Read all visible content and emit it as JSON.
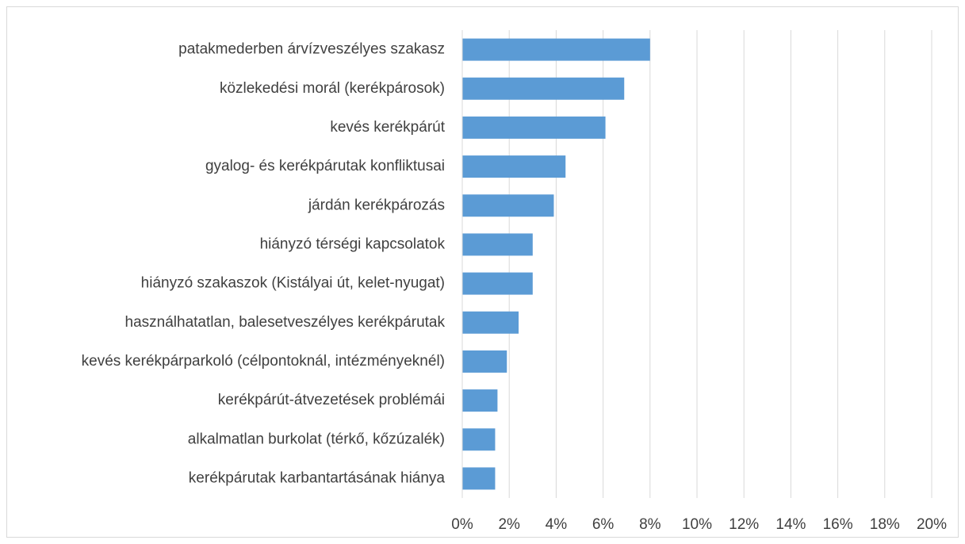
{
  "chart_data": {
    "type": "bar",
    "orientation": "horizontal",
    "categories": [
      "patakmederben árvízveszélyes szakasz",
      "közlekedési morál (kerékpárosok)",
      "kevés kerékpárút",
      "gyalog- és kerékpárutak konfliktusai",
      "járdán kerékpározás",
      "hiányzó térségi kapcsolatok",
      "hiányzó szakaszok (Kistályai út, kelet-nyugat)",
      "használhatatlan, balesetveszélyes kerékpárutak",
      "kevés kerékpárparkoló (célpontoknál, intézményeknél)",
      "kerékpárút-átvezetések problémái",
      "alkalmatlan burkolat (térkő, kőzúzalék)",
      "kerékpárutak karbantartásának hiánya"
    ],
    "values": [
      8.0,
      6.9,
      6.1,
      4.4,
      3.9,
      3.0,
      3.0,
      2.4,
      1.9,
      1.5,
      1.4,
      1.4
    ],
    "color": "#5b9bd5",
    "xlim": [
      0,
      20
    ],
    "xticks": [
      {
        "value": 0,
        "label": "0%"
      },
      {
        "value": 2,
        "label": "2%"
      },
      {
        "value": 4,
        "label": "4%"
      },
      {
        "value": 6,
        "label": "6%"
      },
      {
        "value": 8,
        "label": "8%"
      },
      {
        "value": 10,
        "label": "10%"
      },
      {
        "value": 12,
        "label": "12%"
      },
      {
        "value": 14,
        "label": "14%"
      },
      {
        "value": 16,
        "label": "16%"
      },
      {
        "value": 18,
        "label": "18%"
      },
      {
        "value": 20,
        "label": "20%"
      }
    ],
    "grid": true
  }
}
